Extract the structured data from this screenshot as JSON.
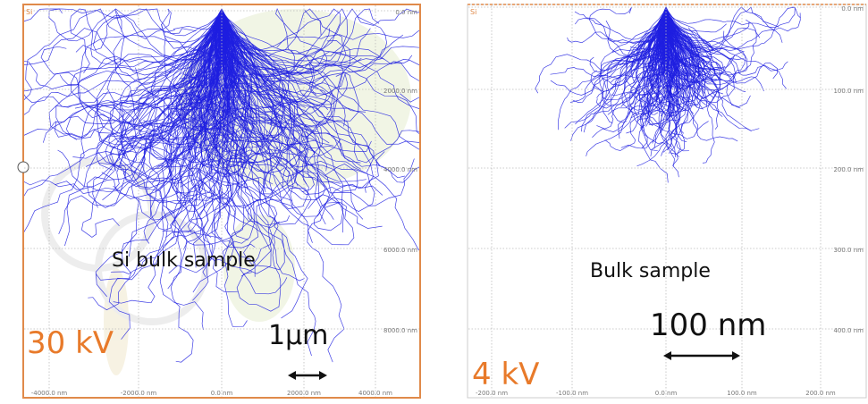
{
  "panels": [
    {
      "corner": "Si",
      "caption": "Si bulk sample",
      "voltage": "30 kV",
      "scale": "1µm",
      "right_ticks": [
        "0.0 nm",
        "2000.0 nm",
        "4000.0 nm",
        "6000.0 nm",
        "8000.0 nm"
      ],
      "bottom_ticks": [
        "-4000.0 nm",
        "-2000.0 nm",
        "0.0 nm",
        "2000.0 nm",
        "4000.0 nm"
      ]
    },
    {
      "corner": "Si",
      "caption": "Bulk sample",
      "voltage": "4 kV",
      "scale": "100 nm",
      "right_ticks": [
        "0.0 nm",
        "100.0 nm",
        "200.0 nm",
        "300.0 nm",
        "400.0 nm"
      ],
      "bottom_ticks": [
        "-200.0 nm",
        "-100.0 nm",
        "0.0 nm",
        "100.0 nm",
        "200.0 nm"
      ]
    }
  ]
}
